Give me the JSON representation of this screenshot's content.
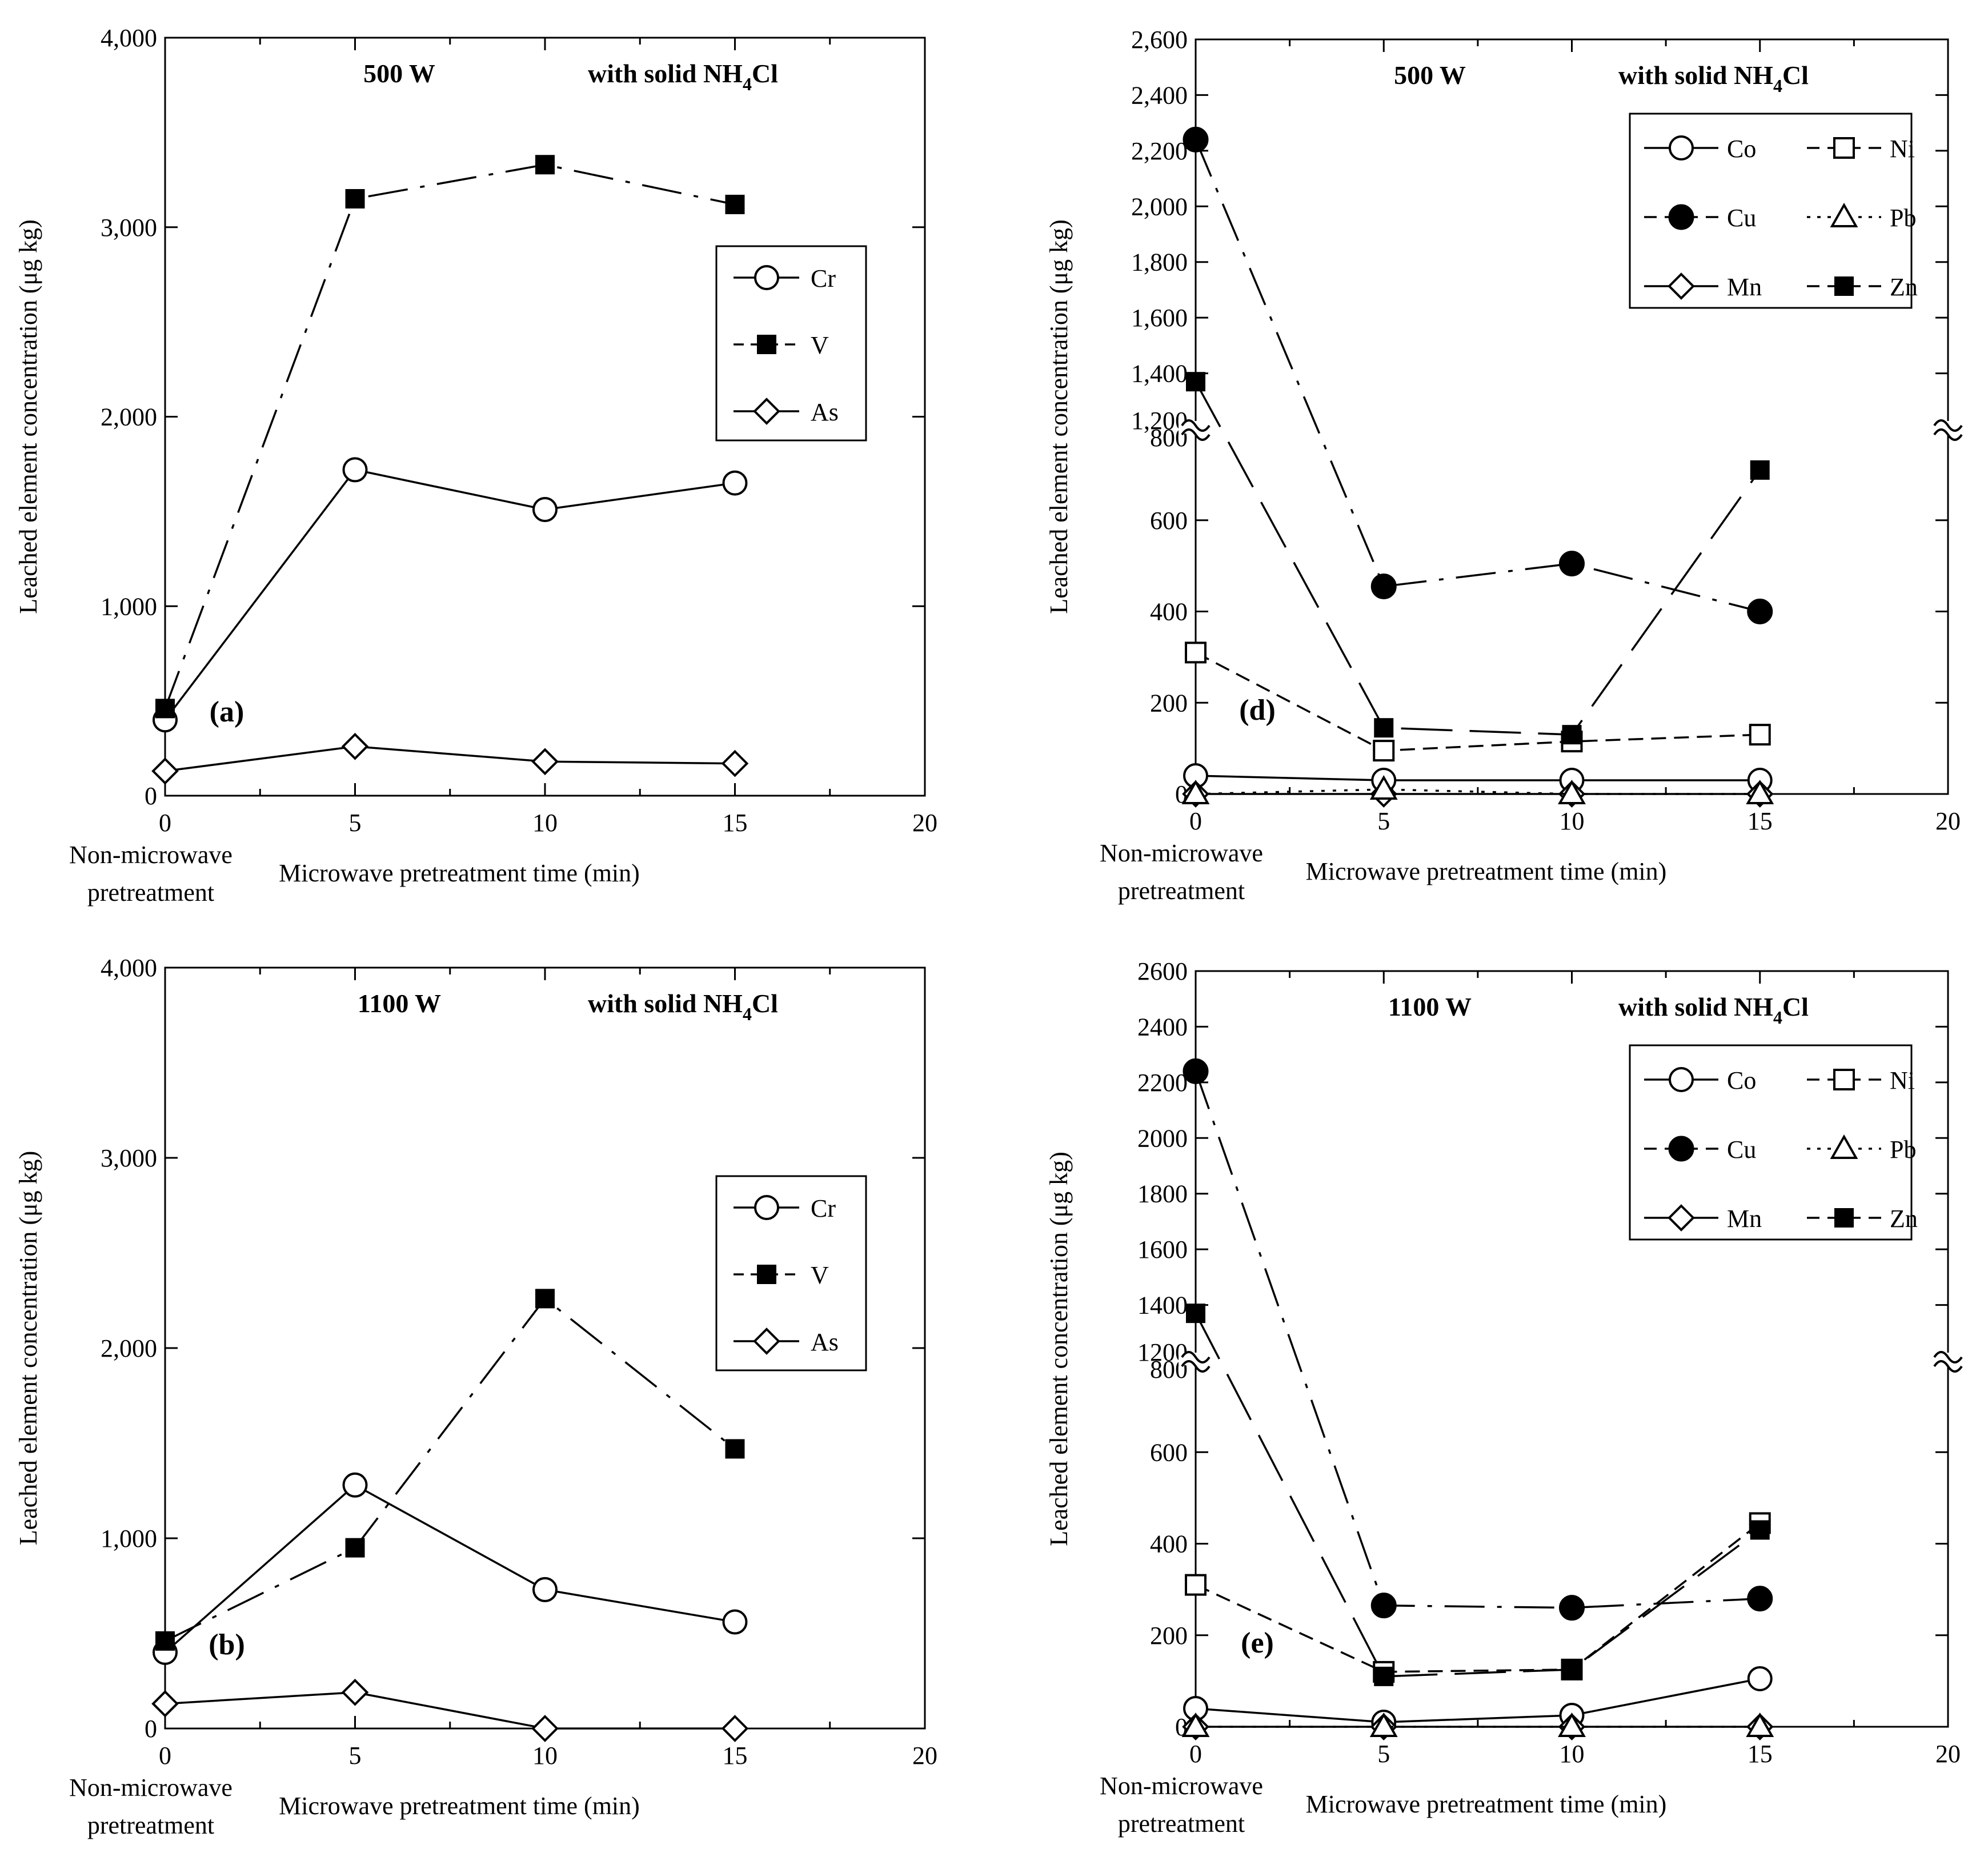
{
  "figure": {
    "title": "Leached element concentration vs microwave pretreatment time"
  },
  "chart_data": [
    {
      "id": "a",
      "type": "line",
      "panel_label": "(a)",
      "power": "500 W",
      "condition": "with solid NH",
      "condition_sub": "4",
      "condition_tail": "Cl",
      "xlabel": "Microwave pretreatment time (min)",
      "ylabel": "Leached element concentration (μg kg)",
      "x_zero_label": [
        "Non-microwave",
        "pretreatment"
      ],
      "xlim": [
        0,
        20
      ],
      "xticks": [
        0,
        5,
        10,
        15,
        20
      ],
      "xtick_labels": [
        "0",
        "5",
        "10",
        "15",
        "20"
      ],
      "ylim": [
        0,
        4000
      ],
      "yticks": [
        0,
        1000,
        2000,
        3000,
        4000
      ],
      "ytick_labels": [
        "0",
        "1,000",
        "2,000",
        "3,000",
        "4,000"
      ],
      "x": [
        0,
        5,
        10,
        15
      ],
      "series": [
        {
          "name": "Cr",
          "marker": "circle-open",
          "dash": "solid",
          "values": [
            400,
            1720,
            1510,
            1650
          ]
        },
        {
          "name": "V",
          "marker": "square-filled",
          "dash": "dashdot",
          "values": [
            460,
            3150,
            3330,
            3120
          ]
        },
        {
          "name": "As",
          "marker": "diamond-open",
          "dash": "solid",
          "values": [
            130,
            260,
            180,
            170
          ]
        }
      ],
      "legend": "right"
    },
    {
      "id": "b",
      "type": "line",
      "panel_label": "(b)",
      "power": "1100 W",
      "condition": "with solid NH",
      "condition_sub": "4",
      "condition_tail": "Cl",
      "xlabel": "Microwave pretreatment time (min)",
      "ylabel": "Leached element concentration (μg kg)",
      "x_zero_label": [
        "Non-microwave",
        "pretreatment"
      ],
      "xlim": [
        0,
        20
      ],
      "xticks": [
        0,
        5,
        10,
        15,
        20
      ],
      "xtick_labels": [
        "0",
        "5",
        "10",
        "15",
        "20"
      ],
      "ylim": [
        0,
        4000
      ],
      "yticks": [
        0,
        1000,
        2000,
        3000,
        4000
      ],
      "ytick_labels": [
        "0",
        "1,000",
        "2,000",
        "3,000",
        "4,000"
      ],
      "x": [
        0,
        5,
        10,
        15
      ],
      "series": [
        {
          "name": "Cr",
          "marker": "circle-open",
          "dash": "solid",
          "values": [
            400,
            1280,
            730,
            560
          ]
        },
        {
          "name": "V",
          "marker": "square-filled",
          "dash": "dashdot",
          "values": [
            460,
            950,
            2260,
            1470
          ]
        },
        {
          "name": "As",
          "marker": "diamond-open",
          "dash": "solid",
          "values": [
            130,
            190,
            0,
            0
          ]
        }
      ],
      "legend": "right"
    },
    {
      "id": "d",
      "type": "line",
      "panel_label": "(d)",
      "power": "500 W",
      "condition": "with solid NH",
      "condition_sub": "4",
      "condition_tail": "Cl",
      "xlabel": "Microwave pretreatment time (min)",
      "ylabel": "Leached element concentration (μg kg)",
      "x_zero_label": [
        "Non-microwave",
        "pretreatment"
      ],
      "xlim": [
        0,
        20
      ],
      "xticks": [
        0,
        5,
        10,
        15,
        20
      ],
      "xtick_labels": [
        "0",
        "5",
        "10",
        "15",
        "20"
      ],
      "ylim_lower": [
        0,
        800
      ],
      "ylim_upper": [
        1200,
        2600
      ],
      "y_break": true,
      "yticks_lower": [
        0,
        200,
        400,
        600,
        800
      ],
      "ytick_labels_lower": [
        "0",
        "200",
        "400",
        "600",
        "800"
      ],
      "yticks_upper": [
        1200,
        1400,
        1600,
        1800,
        2000,
        2200,
        2400,
        2600
      ],
      "ytick_labels_upper": [
        "1,200",
        "1,400",
        "1,600",
        "1,800",
        "2,000",
        "2,200",
        "2,400",
        "2,600"
      ],
      "x": [
        0,
        5,
        10,
        15
      ],
      "series": [
        {
          "name": "Co",
          "marker": "circle-open",
          "dash": "solid",
          "values": [
            40,
            30,
            30,
            30
          ]
        },
        {
          "name": "Cu",
          "marker": "circle-filled",
          "dash": "dashdot",
          "values": [
            2240,
            455,
            505,
            400
          ]
        },
        {
          "name": "Mn",
          "marker": "diamond-open",
          "dash": "solid",
          "values": [
            0,
            0,
            0,
            0
          ]
        },
        {
          "name": "Ni",
          "marker": "square-open",
          "dash": "dashed",
          "values": [
            310,
            95,
            115,
            130
          ]
        },
        {
          "name": "Pb",
          "marker": "triangle-open",
          "dash": "dotted",
          "values": [
            0,
            10,
            0,
            0
          ]
        },
        {
          "name": "Zn",
          "marker": "square-filled",
          "dash": "longdash",
          "values": [
            1370,
            145,
            130,
            710
          ]
        }
      ],
      "legend": "top-right"
    },
    {
      "id": "e",
      "type": "line",
      "panel_label": "(e)",
      "power": "1100 W",
      "condition": "with solid NH",
      "condition_sub": "4",
      "condition_tail": "Cl",
      "xlabel": "Microwave pretreatment time (min)",
      "ylabel": "Leached element concentration (μg kg)",
      "x_zero_label": [
        "Non-microwave",
        "pretreatment"
      ],
      "xlim": [
        0,
        20
      ],
      "xticks": [
        0,
        5,
        10,
        15,
        20
      ],
      "xtick_labels": [
        "0",
        "5",
        "10",
        "15",
        "20"
      ],
      "ylim_lower": [
        0,
        800
      ],
      "ylim_upper": [
        1200,
        2600
      ],
      "y_break": true,
      "yticks_lower": [
        0,
        200,
        400,
        600,
        800
      ],
      "ytick_labels_lower": [
        "0",
        "200",
        "400",
        "600",
        "800"
      ],
      "yticks_upper": [
        1200,
        1400,
        1600,
        1800,
        2000,
        2200,
        2400,
        2600
      ],
      "ytick_labels_upper": [
        "1200",
        "1400",
        "1600",
        "1800",
        "2000",
        "2200",
        "2400",
        "2600"
      ],
      "x": [
        0,
        5,
        10,
        15
      ],
      "series": [
        {
          "name": "Co",
          "marker": "circle-open",
          "dash": "solid",
          "values": [
            40,
            10,
            25,
            105
          ]
        },
        {
          "name": "Cu",
          "marker": "circle-filled",
          "dash": "dashdot",
          "values": [
            2240,
            265,
            260,
            280
          ]
        },
        {
          "name": "Mn",
          "marker": "diamond-open",
          "dash": "solid",
          "values": [
            0,
            0,
            0,
            0
          ]
        },
        {
          "name": "Ni",
          "marker": "square-open",
          "dash": "dashed",
          "values": [
            310,
            120,
            125,
            445
          ]
        },
        {
          "name": "Pb",
          "marker": "triangle-open",
          "dash": "dotted",
          "values": [
            0,
            0,
            0,
            0
          ]
        },
        {
          "name": "Zn",
          "marker": "square-filled",
          "dash": "longdash",
          "values": [
            1370,
            110,
            125,
            430
          ]
        }
      ],
      "legend": "top-right"
    }
  ]
}
